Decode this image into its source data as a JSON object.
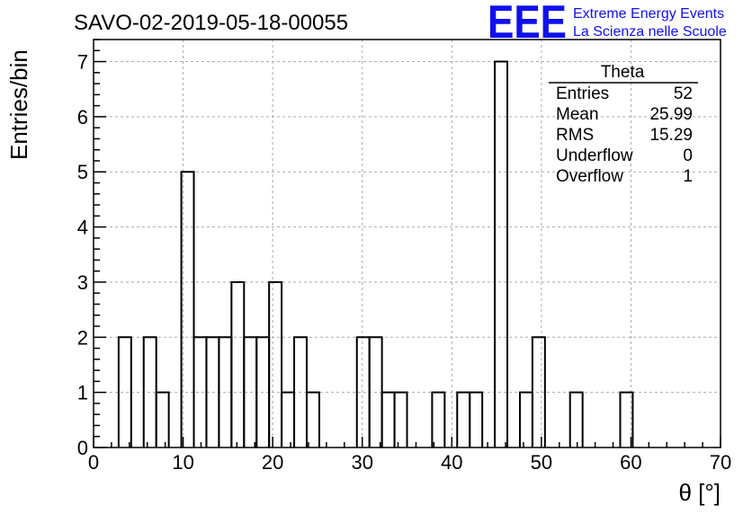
{
  "chart_data": {
    "type": "histogram",
    "title": "SAVO-02-2019-05-18-00055",
    "xlabel": "θ [°]",
    "ylabel": "Entries/bin",
    "xlim": [
      0,
      70
    ],
    "ylim": [
      0,
      7.4
    ],
    "x_ticks": [
      "0",
      "10",
      "20",
      "30",
      "40",
      "50",
      "60",
      "70"
    ],
    "y_ticks": [
      "0",
      "1",
      "2",
      "3",
      "4",
      "5",
      "6",
      "7"
    ],
    "grid": true,
    "bin_width": 1.4,
    "bins": [
      {
        "x": 2.8,
        "count": 2
      },
      {
        "x": 4.2,
        "count": 0
      },
      {
        "x": 5.6,
        "count": 2
      },
      {
        "x": 7.0,
        "count": 1
      },
      {
        "x": 8.4,
        "count": 0
      },
      {
        "x": 9.8,
        "count": 5
      },
      {
        "x": 11.2,
        "count": 2
      },
      {
        "x": 12.6,
        "count": 2
      },
      {
        "x": 14.0,
        "count": 2
      },
      {
        "x": 15.4,
        "count": 3
      },
      {
        "x": 16.8,
        "count": 2
      },
      {
        "x": 18.2,
        "count": 2
      },
      {
        "x": 19.6,
        "count": 3
      },
      {
        "x": 21.0,
        "count": 1
      },
      {
        "x": 22.4,
        "count": 2
      },
      {
        "x": 23.8,
        "count": 1
      },
      {
        "x": 29.4,
        "count": 2
      },
      {
        "x": 30.8,
        "count": 2
      },
      {
        "x": 32.2,
        "count": 1
      },
      {
        "x": 33.6,
        "count": 1
      },
      {
        "x": 37.8,
        "count": 1
      },
      {
        "x": 40.6,
        "count": 1
      },
      {
        "x": 42.0,
        "count": 1
      },
      {
        "x": 44.8,
        "count": 7
      },
      {
        "x": 47.6,
        "count": 1
      },
      {
        "x": 49.0,
        "count": 2
      },
      {
        "x": 53.2,
        "count": 1
      },
      {
        "x": 58.8,
        "count": 1
      }
    ],
    "stats": {
      "name": "Theta",
      "rows": [
        {
          "label": "Entries",
          "value": "52"
        },
        {
          "label": "Mean",
          "value": "25.99"
        },
        {
          "label": "RMS",
          "value": "15.29"
        },
        {
          "label": "Underflow",
          "value": "0"
        },
        {
          "label": "Overflow",
          "value": "1"
        }
      ]
    },
    "colors": {
      "line": "#000000",
      "grid": "#aaaaaa",
      "logo": "#1010ee"
    }
  },
  "logo": {
    "mark": "EEE",
    "line1": "Extreme Energy Events",
    "line2": "La Scienza nelle Scuole"
  }
}
